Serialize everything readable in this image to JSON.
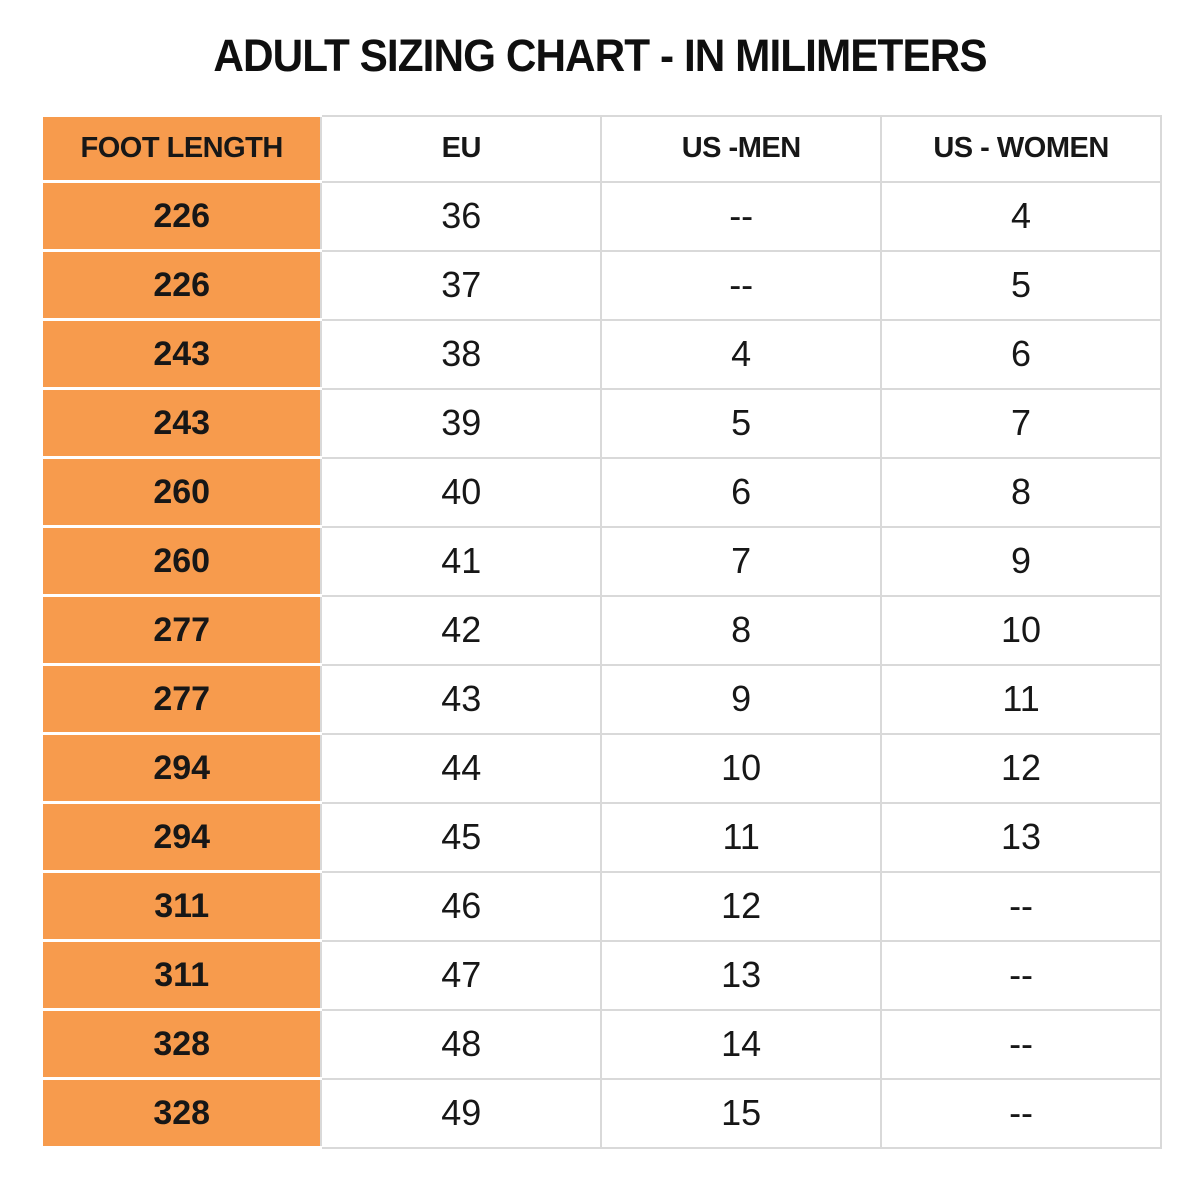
{
  "page": {
    "title": "ADULT SIZING CHART - IN MILIMETERS"
  },
  "chart_data": {
    "type": "table",
    "title": "ADULT SIZING CHART - IN MILIMETERS",
    "columns": [
      "FOOT LENGTH",
      "EU",
      "US -MEN",
      "US - WOMEN"
    ],
    "rows": [
      [
        "226",
        "36",
        "--",
        "4"
      ],
      [
        "226",
        "37",
        "--",
        "5"
      ],
      [
        "243",
        "38",
        "4",
        "6"
      ],
      [
        "243",
        "39",
        "5",
        "7"
      ],
      [
        "260",
        "40",
        "6",
        "8"
      ],
      [
        "260",
        "41",
        "7",
        "9"
      ],
      [
        "277",
        "42",
        "8",
        "10"
      ],
      [
        "277",
        "43",
        "9",
        "11"
      ],
      [
        "294",
        "44",
        "10",
        "12"
      ],
      [
        "294",
        "45",
        "11",
        "13"
      ],
      [
        "311",
        "46",
        "12",
        "--"
      ],
      [
        "311",
        "47",
        "13",
        "--"
      ],
      [
        "328",
        "48",
        "14",
        "--"
      ],
      [
        "328",
        "49",
        "15",
        "--"
      ]
    ],
    "notes": {
      "highlighted_column": "FOOT LENGTH",
      "missing_value_marker": "--"
    }
  },
  "style": {
    "accent_orange": "#F79B4D",
    "grid_line": "#D9D9D9",
    "text_color": "#171717",
    "background": "#FFFFFF"
  }
}
